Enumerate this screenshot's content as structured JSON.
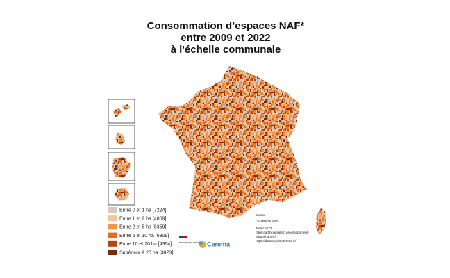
{
  "title": [
    "Consommation d’espaces NAF*",
    "entre 2009 et 2022",
    "à l'échelle communale"
  ],
  "legend": [
    {
      "label": "Entre 0 et 1 ha [7224]",
      "color": "#d6cbc2"
    },
    {
      "label": "Entre 1 et 2 ha [4809]",
      "color": "#f6c394"
    },
    {
      "label": "Entre 2 et 5 ha [8359]",
      "color": "#f2944a"
    },
    {
      "label": "Entre 5 et 10 ha [6309]",
      "color": "#df6f28"
    },
    {
      "label": "Entre 10 et 20 ha [4394]",
      "color": "#b04810"
    },
    {
      "label": "Supérieur à 20 ha [3823]",
      "color": "#782a06"
    }
  ],
  "source": [
    "Source :",
    "Fichiers fonciers",
    "Juillet 2023",
    "https://artificialisation.developpement-",
    "durable.gouv.fr",
    "https://datafoncier.cerema.fr/"
  ],
  "logos": {
    "republic": "RÉPUBLIQUE FRANÇAISE",
    "cerema": "Cerema"
  }
}
